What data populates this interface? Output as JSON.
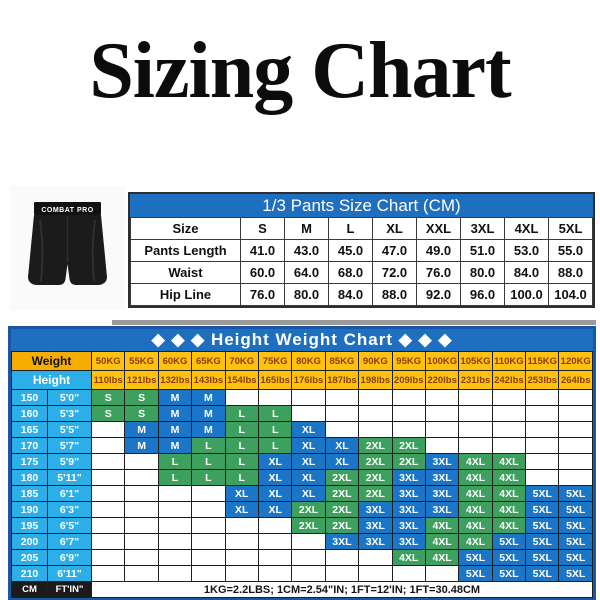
{
  "title": "Sizing Chart",
  "product": {
    "waistband_text": "COMBAT PRO"
  },
  "colors": {
    "header_blue": "#1e6fc0",
    "outer_border_blue": "#1a56a8",
    "green": "#3ea05e",
    "blue": "#1c76c8",
    "gold": "#ffc20e",
    "gold_dark": "#f6ad00",
    "kg_text": "#8d3b00",
    "cyan": "#2caee8",
    "dark": "#1b1b1b"
  },
  "chart_data": [
    {
      "type": "table",
      "name": "pants_size_chart",
      "title": "1/3 Pants Size Chart (CM)",
      "columns": [
        "Size",
        "S",
        "M",
        "L",
        "XL",
        "XXL",
        "3XL",
        "4XL",
        "5XL"
      ],
      "rows": [
        {
          "label": "Pants Length",
          "values": [
            "41.0",
            "43.0",
            "45.0",
            "47.0",
            "49.0",
            "51.0",
            "53.0",
            "55.0"
          ]
        },
        {
          "label": "Waist",
          "values": [
            "60.0",
            "64.0",
            "68.0",
            "72.0",
            "76.0",
            "80.0",
            "84.0",
            "88.0"
          ]
        },
        {
          "label": "Hip Line",
          "values": [
            "76.0",
            "80.0",
            "84.0",
            "88.0",
            "92.0",
            "96.0",
            "100.0",
            "104.0"
          ]
        }
      ]
    },
    {
      "type": "table",
      "name": "height_weight_chart",
      "title": "◆ ◆ ◆ Height Weight Chart ◆ ◆ ◆",
      "weight_label": "Weight",
      "height_label": "Height",
      "weights_kg": [
        "50KG",
        "55KG",
        "60KG",
        "65KG",
        "70KG",
        "75KG",
        "80KG",
        "85KG",
        "90KG",
        "95KG",
        "100KG",
        "105KG",
        "110KG",
        "115KG",
        "120KG"
      ],
      "weights_lbs": [
        "110lbs",
        "121lbs",
        "132lbs",
        "143lbs",
        "154lbs",
        "165lbs",
        "176lbs",
        "187lbs",
        "198lbs",
        "209lbs",
        "220lbs",
        "231lbs",
        "242lbs",
        "253lbs",
        "264lbs"
      ],
      "size_colors": {
        "S": "green",
        "M": "blue",
        "L": "green",
        "XL": "blue",
        "2XL": "green",
        "3XL": "blue",
        "4XL": "green",
        "5XL": "blue"
      },
      "rows": [
        {
          "cm": "150",
          "ftin": "5'0\"",
          "cells": [
            "S",
            "S",
            "M",
            "M",
            "",
            "",
            "",
            "",
            "",
            "",
            "",
            "",
            "",
            "",
            ""
          ]
        },
        {
          "cm": "160",
          "ftin": "5'3\"",
          "cells": [
            "S",
            "S",
            "M",
            "M",
            "L",
            "L",
            "",
            "",
            "",
            "",
            "",
            "",
            "",
            "",
            ""
          ]
        },
        {
          "cm": "165",
          "ftin": "5'5\"",
          "cells": [
            "",
            "M",
            "M",
            "M",
            "L",
            "L",
            "XL",
            "",
            "",
            "",
            "",
            "",
            "",
            "",
            ""
          ]
        },
        {
          "cm": "170",
          "ftin": "5'7\"",
          "cells": [
            "",
            "M",
            "M",
            "L",
            "L",
            "L",
            "XL",
            "XL",
            "2XL",
            "2XL",
            "",
            "",
            "",
            "",
            ""
          ]
        },
        {
          "cm": "175",
          "ftin": "5'9\"",
          "cells": [
            "",
            "",
            "L",
            "L",
            "L",
            "XL",
            "XL",
            "XL",
            "2XL",
            "2XL",
            "3XL",
            "4XL",
            "4XL",
            "",
            ""
          ]
        },
        {
          "cm": "180",
          "ftin": "5'11\"",
          "cells": [
            "",
            "",
            "L",
            "L",
            "L",
            "XL",
            "XL",
            "2XL",
            "2XL",
            "3XL",
            "3XL",
            "4XL",
            "4XL",
            "",
            ""
          ]
        },
        {
          "cm": "185",
          "ftin": "6'1\"",
          "cells": [
            "",
            "",
            "",
            "",
            "XL",
            "XL",
            "XL",
            "2XL",
            "2XL",
            "3XL",
            "3XL",
            "4XL",
            "4XL",
            "5XL",
            "5XL"
          ]
        },
        {
          "cm": "190",
          "ftin": "6'3\"",
          "cells": [
            "",
            "",
            "",
            "",
            "XL",
            "XL",
            "2XL",
            "2XL",
            "3XL",
            "3XL",
            "3XL",
            "4XL",
            "4XL",
            "5XL",
            "5XL"
          ]
        },
        {
          "cm": "195",
          "ftin": "6'5\"",
          "cells": [
            "",
            "",
            "",
            "",
            "",
            "",
            "2XL",
            "2XL",
            "3XL",
            "3XL",
            "4XL",
            "4XL",
            "4XL",
            "5XL",
            "5XL"
          ]
        },
        {
          "cm": "200",
          "ftin": "6'7\"",
          "cells": [
            "",
            "",
            "",
            "",
            "",
            "",
            "",
            "3XL",
            "3XL",
            "3XL",
            "4XL",
            "4XL",
            "5XL",
            "5XL",
            "5XL"
          ]
        },
        {
          "cm": "205",
          "ftin": "6'9\"",
          "cells": [
            "",
            "",
            "",
            "",
            "",
            "",
            "",
            "",
            "",
            "4XL",
            "4XL",
            "5XL",
            "5XL",
            "5XL",
            "5XL"
          ]
        },
        {
          "cm": "210",
          "ftin": "6'11\"",
          "cells": [
            "",
            "",
            "",
            "",
            "",
            "",
            "",
            "",
            "",
            "",
            "",
            "5XL",
            "5XL",
            "5XL",
            "5XL"
          ]
        }
      ],
      "footer": {
        "cm_label": "CM",
        "ftin_label": "FT'IN\"",
        "note": "1KG=2.2LBS;  1CM=2.54\"IN;  1FT=12'IN;  1FT=30.48CM"
      }
    }
  ]
}
